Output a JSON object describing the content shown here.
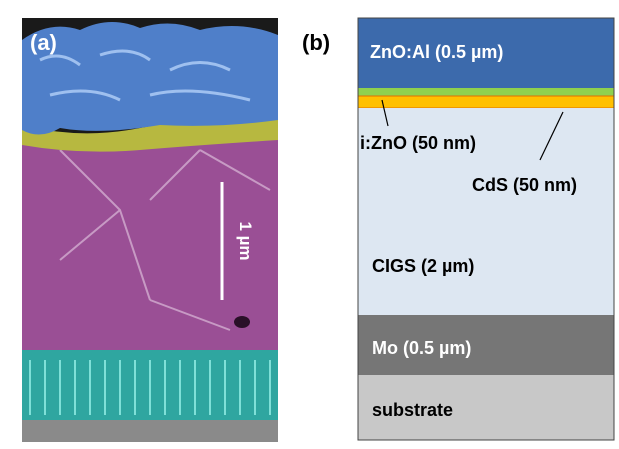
{
  "panels": [
    {
      "label": "(a)",
      "scale_bar": "1 µm"
    },
    {
      "label": "(b)",
      "layers": [
        {
          "label": "ZnO:Al (0.5 µm)"
        },
        {
          "label": "i:ZnO (50 nm)"
        },
        {
          "label": "CdS (50 nm)"
        },
        {
          "label": "CIGS (2 µm)"
        },
        {
          "label": "Mo (0.5 µm)"
        },
        {
          "label": "substrate"
        }
      ]
    }
  ]
}
